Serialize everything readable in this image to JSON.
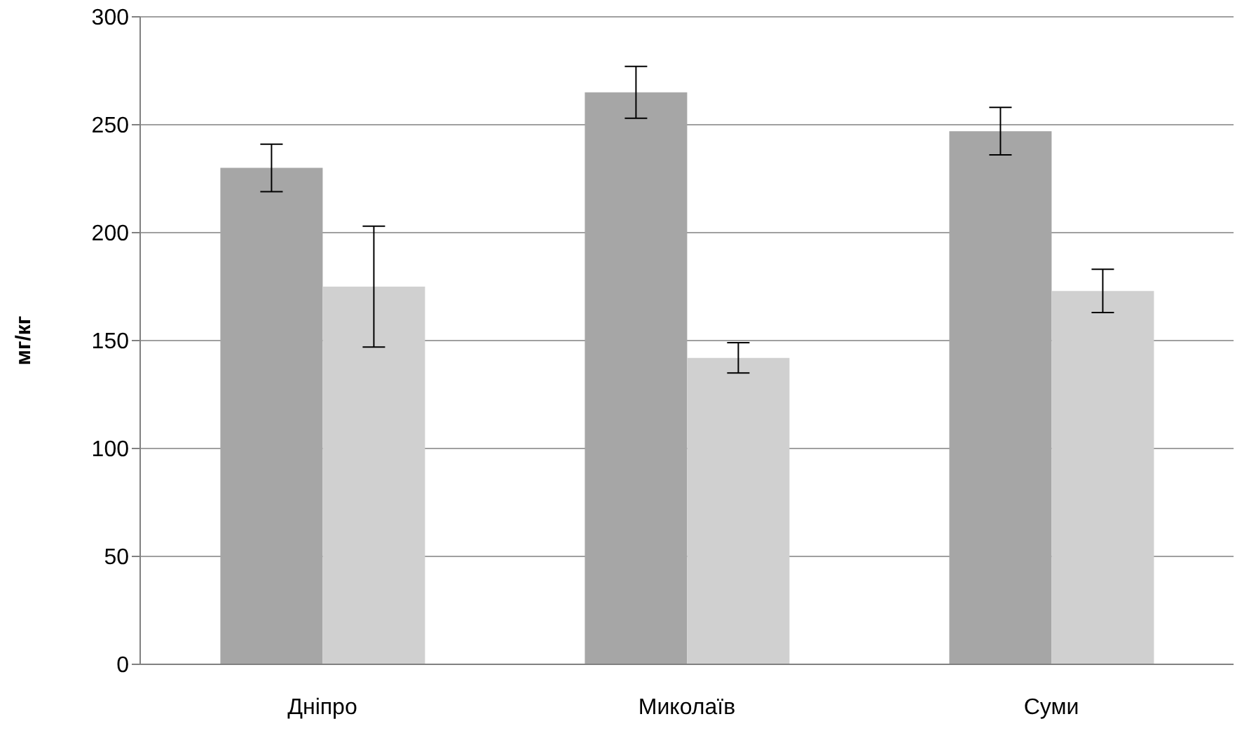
{
  "chart_data": {
    "type": "bar",
    "ylabel": "мг/кг",
    "categories": [
      "Дніпро",
      "Миколаїв",
      "Суми"
    ],
    "series": [
      {
        "color": "#a6a6a6",
        "values": [
          230,
          265,
          247
        ],
        "errors": [
          11,
          12,
          11
        ]
      },
      {
        "color": "#d0d0d0",
        "values": [
          175,
          142,
          173
        ],
        "errors": [
          28,
          7,
          10
        ]
      }
    ],
    "ylim": [
      0,
      300
    ],
    "yticks": [
      0,
      50,
      100,
      150,
      200,
      250,
      300
    ],
    "grid": "y"
  }
}
